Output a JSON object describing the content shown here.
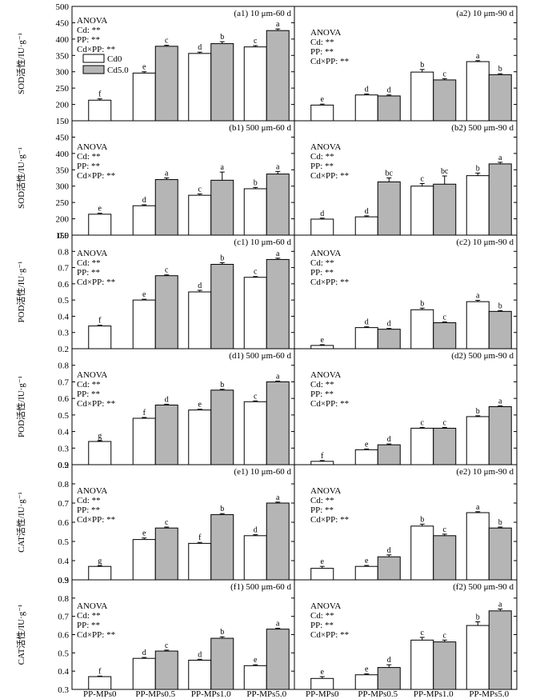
{
  "chart_data": [
    {
      "type": "bar",
      "panel_label": "(a1) 10 μm-60 d",
      "ylabel": "SOD活性/IU·g⁻¹",
      "ylim": [
        150,
        500
      ],
      "yticks": [
        150,
        200,
        250,
        300,
        350,
        400,
        450,
        500
      ],
      "anova": [
        "ANOVA",
        "Cd: **",
        "PP: **",
        "Cd×PP: **"
      ],
      "legend": [
        "Cd0",
        "Cd5.0"
      ],
      "categories": [
        "PP-MPs0",
        "PP-MPs0.5",
        "PP-MPs1.0",
        "PP-MPs5.0"
      ],
      "series": [
        {
          "name": "Cd0",
          "values": [
            213,
            296,
            356,
            376
          ],
          "errors": [
            4,
            4,
            4,
            4
          ],
          "letters": [
            "f",
            "e",
            "d",
            "c"
          ]
        },
        {
          "name": "Cd5.0",
          "values": [
            null,
            378,
            386,
            426
          ],
          "errors": [
            null,
            3,
            6,
            5
          ],
          "letters": [
            null,
            "c",
            "b",
            "a"
          ]
        }
      ]
    },
    {
      "type": "bar",
      "panel_label": "(a2) 10 μm-90 d",
      "ylabel": "",
      "ylim": [
        150,
        500
      ],
      "yticks": [
        150,
        200,
        250,
        300,
        350,
        400,
        450,
        500
      ],
      "anova": [
        "ANOVA",
        "Cd: **",
        "PP: **",
        "Cd×PP: **"
      ],
      "categories": [
        "PP-MPs0",
        "PP-MPs0.5",
        "PP-MPs1.0",
        "PP-MPs5.0"
      ],
      "series": [
        {
          "name": "Cd0",
          "values": [
            198,
            229,
            299,
            331
          ],
          "errors": [
            3,
            3,
            8,
            3
          ],
          "letters": [
            "e",
            "d",
            "b",
            "a"
          ]
        },
        {
          "name": "Cd5.0",
          "values": [
            null,
            226,
            275,
            291
          ],
          "errors": [
            null,
            3,
            4,
            3
          ],
          "letters": [
            null,
            "d",
            "c",
            "b"
          ]
        }
      ]
    },
    {
      "type": "bar",
      "panel_label": "(b1) 500 μm-60 d",
      "ylabel": "SOD活性/IU·g⁻¹",
      "ylim": [
        150,
        500
      ],
      "yticks": [
        150,
        200,
        250,
        300,
        350,
        400,
        450
      ],
      "anova": [
        "ANOVA",
        "Cd: **",
        "PP: **",
        "Cd×PP: **"
      ],
      "categories": [
        "PP-MPs0",
        "PP-MPs0.5",
        "PP-MPs1.0",
        "PP-MPs5.0"
      ],
      "series": [
        {
          "name": "Cd0",
          "values": [
            214,
            240,
            272,
            292
          ],
          "errors": [
            3,
            3,
            4,
            4
          ],
          "letters": [
            "e",
            "d",
            "c",
            "b"
          ]
        },
        {
          "name": "Cd5.0",
          "values": [
            null,
            320,
            318,
            337
          ],
          "errors": [
            null,
            5,
            25,
            8
          ],
          "letters": [
            null,
            "a",
            "a",
            "a"
          ]
        }
      ]
    },
    {
      "type": "bar",
      "panel_label": "(b2) 500 μm-90 d",
      "ylabel": "",
      "ylim": [
        150,
        500
      ],
      "yticks": [
        150,
        200,
        250,
        300,
        350,
        400,
        450
      ],
      "anova": [
        "ANOVA",
        "Cd: **",
        "PP: **",
        "Cd×PP: **"
      ],
      "categories": [
        "PP-MPs0",
        "PP-MPs0.5",
        "PP-MPs1.0",
        "PP-MPs5.0"
      ],
      "series": [
        {
          "name": "Cd0",
          "values": [
            199,
            206,
            300,
            332
          ],
          "errors": [
            3,
            3,
            8,
            8
          ],
          "letters": [
            "d",
            "d",
            "c",
            "b"
          ]
        },
        {
          "name": "Cd5.0",
          "values": [
            null,
            313,
            306,
            368
          ],
          "errors": [
            null,
            12,
            25,
            5
          ],
          "letters": [
            null,
            "bc",
            "bc",
            "a"
          ]
        }
      ]
    },
    {
      "type": "bar",
      "panel_label": "(c1) 10 μm-60 d",
      "ylabel": "POD活性/IU·g⁻¹",
      "ylim": [
        0.2,
        0.9
      ],
      "yticks": [
        0.2,
        0.3,
        0.4,
        0.5,
        0.6,
        0.7,
        0.8,
        0.9
      ],
      "anova": [
        "ANOVA",
        "Cd: **",
        "PP: **",
        "Cd×PP: **"
      ],
      "categories": [
        "PP-MPs0",
        "PP-MPs0.5",
        "PP-MPs1.0",
        "PP-MPs5.0"
      ],
      "series": [
        {
          "name": "Cd0",
          "values": [
            0.34,
            0.5,
            0.55,
            0.64
          ],
          "errors": [
            0.005,
            0.005,
            0.01,
            0.005
          ],
          "letters": [
            "f",
            "e",
            "d",
            "c"
          ]
        },
        {
          "name": "Cd5.0",
          "values": [
            null,
            0.65,
            0.72,
            0.75
          ],
          "errors": [
            null,
            0.005,
            0.01,
            0.008
          ],
          "letters": [
            null,
            "c",
            "b",
            "a"
          ]
        }
      ]
    },
    {
      "type": "bar",
      "panel_label": "(c2) 10 μm-90 d",
      "ylabel": "",
      "ylim": [
        0.2,
        0.9
      ],
      "yticks": [
        0.2,
        0.3,
        0.4,
        0.5,
        0.6,
        0.7,
        0.8,
        0.9
      ],
      "anova": [
        "ANOVA",
        "Cd: **",
        "PP: **",
        "Cd×PP: **"
      ],
      "categories": [
        "PP-MPs0",
        "PP-MPs0.5",
        "PP-MPs1.0",
        "PP-MPs5.0"
      ],
      "series": [
        {
          "name": "Cd0",
          "values": [
            0.22,
            0.33,
            0.44,
            0.49
          ],
          "errors": [
            0.005,
            0.005,
            0.01,
            0.008
          ],
          "letters": [
            "e",
            "d",
            "b",
            "a"
          ]
        },
        {
          "name": "Cd5.0",
          "values": [
            null,
            0.32,
            0.36,
            0.43
          ],
          "errors": [
            null,
            0.005,
            0.005,
            0.005
          ],
          "letters": [
            null,
            "d",
            "c",
            "b"
          ]
        }
      ]
    },
    {
      "type": "bar",
      "panel_label": "(d1) 500 μm-60 d",
      "ylabel": "POD活性/IU·g⁻¹",
      "ylim": [
        0.2,
        0.9
      ],
      "yticks": [
        0.2,
        0.3,
        0.4,
        0.5,
        0.6,
        0.7,
        0.8
      ],
      "anova": [
        "ANOVA",
        "Cd: **",
        "PP: **",
        "Cd×PP: **"
      ],
      "categories": [
        "PP-MPs0",
        "PP-MPs0.5",
        "PP-MPs1.0",
        "PP-MPs5.0"
      ],
      "series": [
        {
          "name": "Cd0",
          "values": [
            0.34,
            0.48,
            0.53,
            0.58
          ],
          "errors": [
            0.005,
            0.005,
            0.005,
            0.005
          ],
          "letters": [
            "g",
            "f",
            "e",
            "c"
          ]
        },
        {
          "name": "Cd5.0",
          "values": [
            null,
            0.56,
            0.65,
            0.7
          ],
          "errors": [
            null,
            0.005,
            0.005,
            0.005
          ],
          "letters": [
            null,
            "d",
            "b",
            "a"
          ]
        }
      ]
    },
    {
      "type": "bar",
      "panel_label": "(d2) 500 μm-90 d",
      "ylabel": "",
      "ylim": [
        0.2,
        0.9
      ],
      "yticks": [
        0.2,
        0.3,
        0.4,
        0.5,
        0.6,
        0.7,
        0.8
      ],
      "anova": [
        "ANOVA",
        "Cd: **",
        "PP: **",
        "Cd×PP: **"
      ],
      "categories": [
        "PP-MPs0",
        "PP-MPs0.5",
        "PP-MPs1.0",
        "PP-MPs5.0"
      ],
      "series": [
        {
          "name": "Cd0",
          "values": [
            0.22,
            0.29,
            0.42,
            0.49
          ],
          "errors": [
            0.005,
            0.005,
            0.005,
            0.005
          ],
          "letters": [
            "f",
            "e",
            "c",
            "b"
          ]
        },
        {
          "name": "Cd5.0",
          "values": [
            null,
            0.32,
            0.42,
            0.55
          ],
          "errors": [
            null,
            0.005,
            0.005,
            0.005
          ],
          "letters": [
            null,
            "d",
            "c",
            "a"
          ]
        }
      ]
    },
    {
      "type": "bar",
      "panel_label": "(e1) 10 μm-60 d",
      "ylabel": "CAT活性/IU·g⁻¹",
      "ylim": [
        0.3,
        0.9
      ],
      "yticks": [
        0.3,
        0.4,
        0.5,
        0.6,
        0.7,
        0.8,
        0.9
      ],
      "anova": [
        "ANOVA",
        "Cd: **",
        "PP: **",
        "Cd×PP: **"
      ],
      "categories": [
        "PP-MPs0",
        "PP-MPs0.5",
        "PP-MPs1.0",
        "PP-MPs5.0"
      ],
      "series": [
        {
          "name": "Cd0",
          "values": [
            0.37,
            0.51,
            0.49,
            0.53
          ],
          "errors": [
            0.003,
            0.008,
            0.005,
            0.005
          ],
          "letters": [
            "g",
            "e",
            "f",
            "d"
          ]
        },
        {
          "name": "Cd5.0",
          "values": [
            null,
            0.57,
            0.64,
            0.7
          ],
          "errors": [
            null,
            0.005,
            0.005,
            0.005
          ],
          "letters": [
            null,
            "c",
            "b",
            "a"
          ]
        }
      ]
    },
    {
      "type": "bar",
      "panel_label": "(e2) 10 μm-90 d",
      "ylabel": "",
      "ylim": [
        0.3,
        0.9
      ],
      "yticks": [
        0.3,
        0.4,
        0.5,
        0.6,
        0.7,
        0.8,
        0.9
      ],
      "anova": [
        "ANOVA",
        "Cd: **",
        "PP: **",
        "Cd×PP: **"
      ],
      "categories": [
        "PP-MPs0",
        "PP-MPs0.5",
        "PP-MPs1.0",
        "PP-MPs5.0"
      ],
      "series": [
        {
          "name": "Cd0",
          "values": [
            0.36,
            0.37,
            0.58,
            0.65
          ],
          "errors": [
            0.01,
            0.005,
            0.01,
            0.005
          ],
          "letters": [
            "e",
            "e",
            "b",
            "a"
          ]
        },
        {
          "name": "Cd5.0",
          "values": [
            null,
            0.42,
            0.53,
            0.57
          ],
          "errors": [
            null,
            0.01,
            0.008,
            0.005
          ],
          "letters": [
            null,
            "d",
            "c",
            "b"
          ]
        }
      ]
    },
    {
      "type": "bar",
      "panel_label": "(f1) 500 μm-60 d",
      "ylabel": "CAT活性/IU·g⁻¹",
      "ylim": [
        0.3,
        0.9
      ],
      "yticks": [
        0.3,
        0.4,
        0.5,
        0.6,
        0.7,
        0.8,
        0.9
      ],
      "anova": [
        "ANOVA",
        "Cd: **",
        "PP: **",
        "Cd×PP: **"
      ],
      "categories": [
        "PP-MPs0",
        "PP-MPs0.5",
        "PP-MPs1.0",
        "PP-MPs5.0"
      ],
      "series": [
        {
          "name": "Cd0",
          "values": [
            0.37,
            0.47,
            0.46,
            0.43
          ],
          "errors": [
            0.003,
            0.005,
            0.005,
            0.005
          ],
          "letters": [
            "f",
            "d",
            "d",
            "e"
          ]
        },
        {
          "name": "Cd5.0",
          "values": [
            null,
            0.51,
            0.58,
            0.63
          ],
          "errors": [
            null,
            0.005,
            0.008,
            0.005
          ],
          "letters": [
            null,
            "c",
            "b",
            "a"
          ]
        }
      ]
    },
    {
      "type": "bar",
      "panel_label": "(f2) 500 μm-90 d",
      "ylabel": "",
      "ylim": [
        0.3,
        0.9
      ],
      "yticks": [
        0.3,
        0.4,
        0.5,
        0.6,
        0.7,
        0.8,
        0.9
      ],
      "anova": [
        "ANOVA",
        "Cd: **",
        "PP: **",
        "Cd×PP: **"
      ],
      "categories": [
        "PP-MPs0",
        "PP-MPs0.5",
        "PP-MPs1.0",
        "PP-MPs5.0"
      ],
      "series": [
        {
          "name": "Cd0",
          "values": [
            0.36,
            0.38,
            0.57,
            0.65
          ],
          "errors": [
            0.01,
            0.005,
            0.015,
            0.02
          ],
          "letters": [
            "e",
            "e",
            "c",
            "b"
          ]
        },
        {
          "name": "Cd5.0",
          "values": [
            null,
            0.42,
            0.56,
            0.73
          ],
          "errors": [
            null,
            0.015,
            0.01,
            0.01
          ],
          "letters": [
            null,
            "d",
            "c",
            "a"
          ]
        }
      ]
    }
  ],
  "colors": {
    "cd0_fill": "#ffffff",
    "cd5_fill": "#b5b5b5",
    "stroke": "#000000"
  }
}
